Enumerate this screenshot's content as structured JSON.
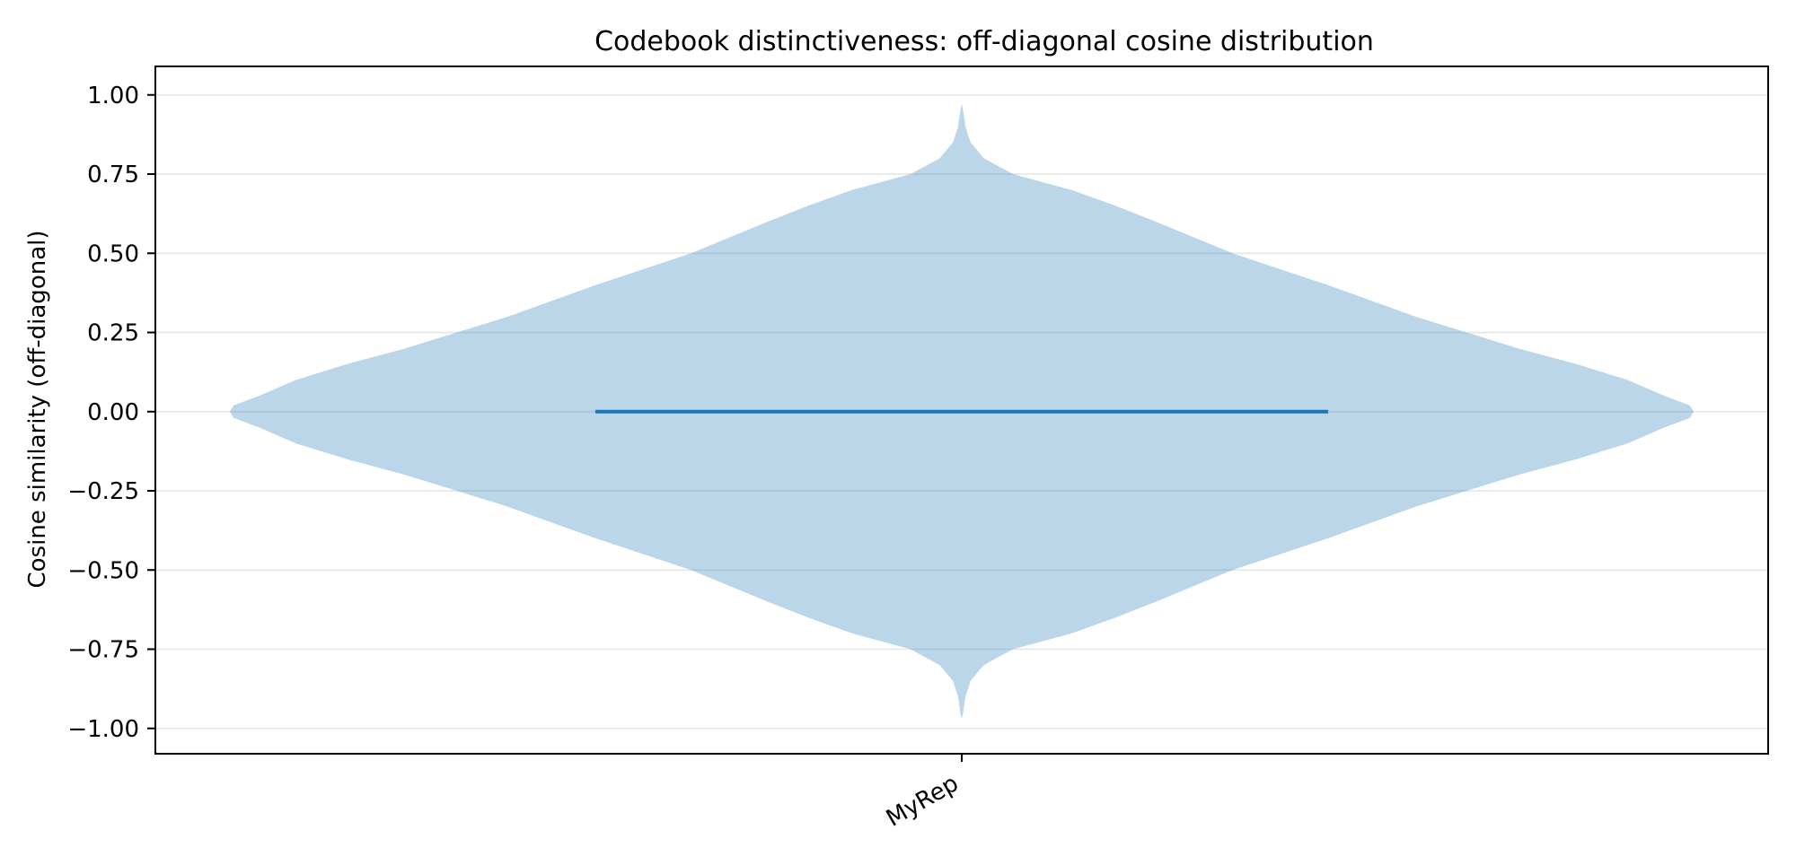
{
  "chart_data": {
    "type": "violin",
    "title": "Codebook distinctiveness: off-diagonal cosine distribution",
    "xlabel": "",
    "ylabel": "Cosine similarity (off-diagonal)",
    "categories": [
      "MyRep"
    ],
    "ylim": [
      -1.08,
      1.09
    ],
    "yticks": [
      1.0,
      0.75,
      0.5,
      0.25,
      0.0,
      -0.25,
      -0.5,
      -0.75,
      -1.0
    ],
    "ytick_labels": [
      "1.00",
      "0.75",
      "0.50",
      "0.25",
      "0.00",
      "−0.25",
      "−0.50",
      "−0.75",
      "−1.00"
    ],
    "grid": "horizontal",
    "series": [
      {
        "median": 0.0,
        "range": [
          -0.97,
          0.97
        ],
        "density_profile": [
          [
            0.97,
            0.0
          ],
          [
            0.95,
            0.002
          ],
          [
            0.9,
            0.005
          ],
          [
            0.85,
            0.012
          ],
          [
            0.8,
            0.03
          ],
          [
            0.75,
            0.07
          ],
          [
            0.7,
            0.15
          ],
          [
            0.65,
            0.21
          ],
          [
            0.6,
            0.265
          ],
          [
            0.5,
            0.37
          ],
          [
            0.4,
            0.5
          ],
          [
            0.3,
            0.62
          ],
          [
            0.25,
            0.69
          ],
          [
            0.2,
            0.76
          ],
          [
            0.15,
            0.84
          ],
          [
            0.1,
            0.91
          ],
          [
            0.05,
            0.96
          ],
          [
            0.02,
            0.995
          ],
          [
            0.0,
            1.0
          ],
          [
            -0.02,
            0.995
          ],
          [
            -0.05,
            0.96
          ],
          [
            -0.1,
            0.91
          ],
          [
            -0.15,
            0.84
          ],
          [
            -0.2,
            0.76
          ],
          [
            -0.25,
            0.69
          ],
          [
            -0.3,
            0.62
          ],
          [
            -0.4,
            0.5
          ],
          [
            -0.5,
            0.37
          ],
          [
            -0.6,
            0.265
          ],
          [
            -0.65,
            0.21
          ],
          [
            -0.7,
            0.15
          ],
          [
            -0.75,
            0.07
          ],
          [
            -0.8,
            0.03
          ],
          [
            -0.85,
            0.012
          ],
          [
            -0.9,
            0.005
          ],
          [
            -0.95,
            0.002
          ],
          [
            -0.97,
            0.0
          ]
        ]
      }
    ],
    "colors": {
      "violin_fill": "#1f77b4",
      "median_line": "#1f77b4",
      "grid": "#e6e6e6",
      "axis": "#000000"
    }
  }
}
